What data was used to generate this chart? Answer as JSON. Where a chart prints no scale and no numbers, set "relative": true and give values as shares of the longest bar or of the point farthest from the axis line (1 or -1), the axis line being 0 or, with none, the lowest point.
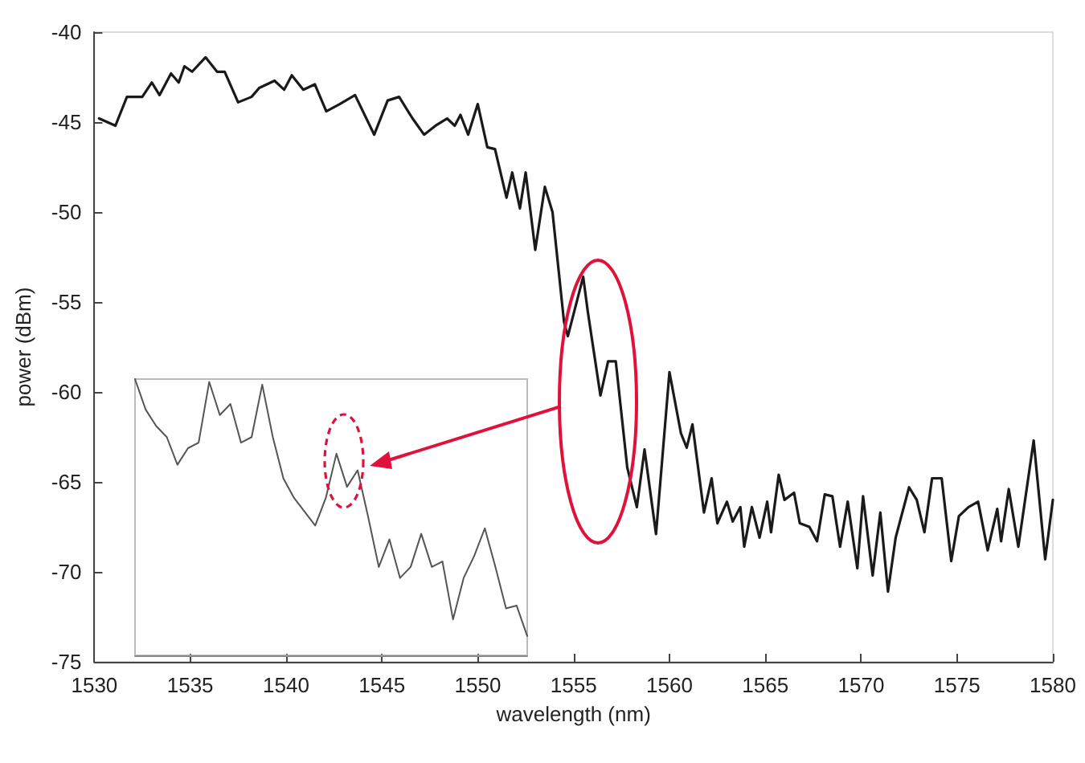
{
  "chart_data": [
    {
      "type": "line",
      "xlabel": "wavelength (nm)",
      "ylabel": "power (dBm)",
      "color": "#1a1a1a",
      "xlim": [
        1530,
        1580
      ],
      "ylim": [
        -75,
        -40
      ],
      "xticks": [
        1530,
        1535,
        1540,
        1545,
        1550,
        1555,
        1560,
        1565,
        1570,
        1575,
        1580
      ],
      "yticks": [
        -75,
        -70,
        -65,
        -60,
        -55,
        -50,
        -45,
        -40
      ],
      "x": [
        1530.25,
        1531.1,
        1531.7,
        1532.5,
        1533.0,
        1533.4,
        1534.0,
        1534.4,
        1534.7,
        1535.1,
        1535.8,
        1536.4,
        1536.8,
        1537.5,
        1538.2,
        1538.6,
        1539.4,
        1539.9,
        1540.3,
        1540.9,
        1541.5,
        1542.1,
        1542.8,
        1543.6,
        1544.6,
        1545.3,
        1545.9,
        1546.6,
        1547.2,
        1547.8,
        1548.4,
        1548.8,
        1549.1,
        1549.5,
        1550.0,
        1550.5,
        1550.9,
        1551.5,
        1551.8,
        1552.2,
        1552.5,
        1553.0,
        1553.5,
        1553.9,
        1554.5,
        1554.7,
        1555.5,
        1555.75,
        1556.4,
        1556.8,
        1557.2,
        1557.8,
        1558.3,
        1558.7,
        1559.3,
        1560.0,
        1560.6,
        1560.9,
        1561.2,
        1561.8,
        1562.2,
        1562.5,
        1563.0,
        1563.3,
        1563.7,
        1563.9,
        1564.3,
        1564.7,
        1565.1,
        1565.3,
        1565.7,
        1566.0,
        1566.5,
        1566.8,
        1567.3,
        1567.7,
        1568.1,
        1568.5,
        1568.9,
        1569.3,
        1569.8,
        1570.1,
        1570.6,
        1571.0,
        1571.4,
        1571.8,
        1572.5,
        1572.9,
        1573.3,
        1573.7,
        1574.2,
        1574.7,
        1575.1,
        1575.6,
        1576.1,
        1576.6,
        1577.1,
        1577.3,
        1577.7,
        1578.2,
        1579.0,
        1579.6,
        1580.0
      ],
      "values": [
        -44.8,
        -45.2,
        -43.6,
        -43.6,
        -42.8,
        -43.5,
        -42.3,
        -42.8,
        -41.9,
        -42.2,
        -41.4,
        -42.2,
        -42.2,
        -43.9,
        -43.6,
        -43.1,
        -42.7,
        -43.2,
        -42.4,
        -43.2,
        -42.9,
        -44.4,
        -44.0,
        -43.5,
        -45.7,
        -43.8,
        -43.6,
        -44.8,
        -45.7,
        -45.2,
        -44.8,
        -45.2,
        -44.6,
        -45.7,
        -44.0,
        -46.4,
        -46.5,
        -49.2,
        -47.8,
        -49.8,
        -47.8,
        -52.1,
        -48.6,
        -50.0,
        -56.1,
        -56.9,
        -53.6,
        -55.6,
        -60.2,
        -58.3,
        -58.3,
        -64.2,
        -66.4,
        -63.2,
        -67.9,
        -58.9,
        -62.3,
        -63.1,
        -61.8,
        -66.7,
        -64.8,
        -67.3,
        -66.1,
        -67.2,
        -66.4,
        -68.6,
        -66.4,
        -68.1,
        -66.1,
        -67.8,
        -64.6,
        -66.0,
        -65.6,
        -67.3,
        -67.5,
        -68.3,
        -65.7,
        -65.8,
        -68.6,
        -66.1,
        -69.8,
        -65.8,
        -70.2,
        -66.7,
        -71.1,
        -68.1,
        -65.3,
        -66.0,
        -67.8,
        -64.8,
        -64.8,
        -69.4,
        -66.9,
        -66.4,
        -66.1,
        -68.8,
        -66.5,
        -68.3,
        -65.4,
        -68.6,
        -62.7,
        -69.3,
        -66.0
      ]
    },
    {
      "type": "line",
      "relative": true,
      "color": "#555555",
      "categories": [
        null,
        null,
        null,
        null,
        null,
        null,
        null,
        null,
        null,
        null,
        null,
        null,
        null,
        null,
        null,
        null,
        null,
        null,
        null,
        null,
        null,
        null,
        null,
        null,
        null,
        null,
        null,
        null,
        null,
        null,
        null,
        null,
        null,
        null,
        null,
        null,
        null,
        null
      ],
      "values": [
        1.0,
        0.89,
        0.83,
        0.79,
        0.69,
        0.75,
        0.77,
        0.99,
        0.87,
        0.91,
        0.77,
        0.79,
        0.98,
        0.79,
        0.64,
        0.57,
        0.52,
        0.47,
        0.57,
        0.73,
        0.61,
        0.67,
        0.5,
        0.32,
        0.42,
        0.28,
        0.32,
        0.44,
        0.32,
        0.34,
        0.13,
        0.28,
        0.36,
        0.46,
        0.32,
        0.17,
        0.18,
        0.07
      ]
    }
  ]
}
